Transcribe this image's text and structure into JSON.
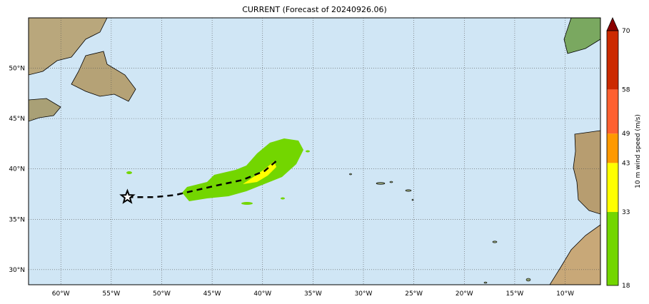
{
  "title": "CURRENT (Forecast of 20240926.06)",
  "map": {
    "lon_range": [
      -63.2,
      -6.5
    ],
    "lat_range": [
      28.5,
      55.0
    ],
    "lon_ticks": [
      -60,
      -55,
      -50,
      -45,
      -40,
      -35,
      -30,
      -25,
      -20,
      -15,
      -10
    ],
    "lon_labels": [
      "60°W",
      "55°W",
      "50°W",
      "45°W",
      "40°W",
      "35°W",
      "30°W",
      "25°W",
      "20°W",
      "15°W",
      "10°W"
    ],
    "lat_ticks": [
      50,
      45,
      40,
      35,
      30
    ],
    "lat_labels": [
      "50°N",
      "45°N",
      "40°N",
      "35°N",
      "30°N"
    ],
    "ocean_color": "#d0e6f5",
    "gridlines": true,
    "track": [
      [
        -53.4,
        37.2
      ],
      [
        -50.8,
        37.2
      ],
      [
        -48.7,
        37.4
      ],
      [
        -44.8,
        38.3
      ],
      [
        -42.0,
        38.9
      ],
      [
        -39.8,
        39.8
      ],
      [
        -38.5,
        40.9
      ]
    ],
    "current_position_marker": "star-icon"
  },
  "colorbar": {
    "label": "10 m wind speed (m/s)",
    "levels": [
      "18",
      "33",
      "43",
      "49",
      "58",
      "70"
    ],
    "colors": [
      "#73d600",
      "#ffff00",
      "#ff9900",
      "#ff6030",
      "#cc2a00"
    ],
    "extend_color": "#8b0000"
  }
}
